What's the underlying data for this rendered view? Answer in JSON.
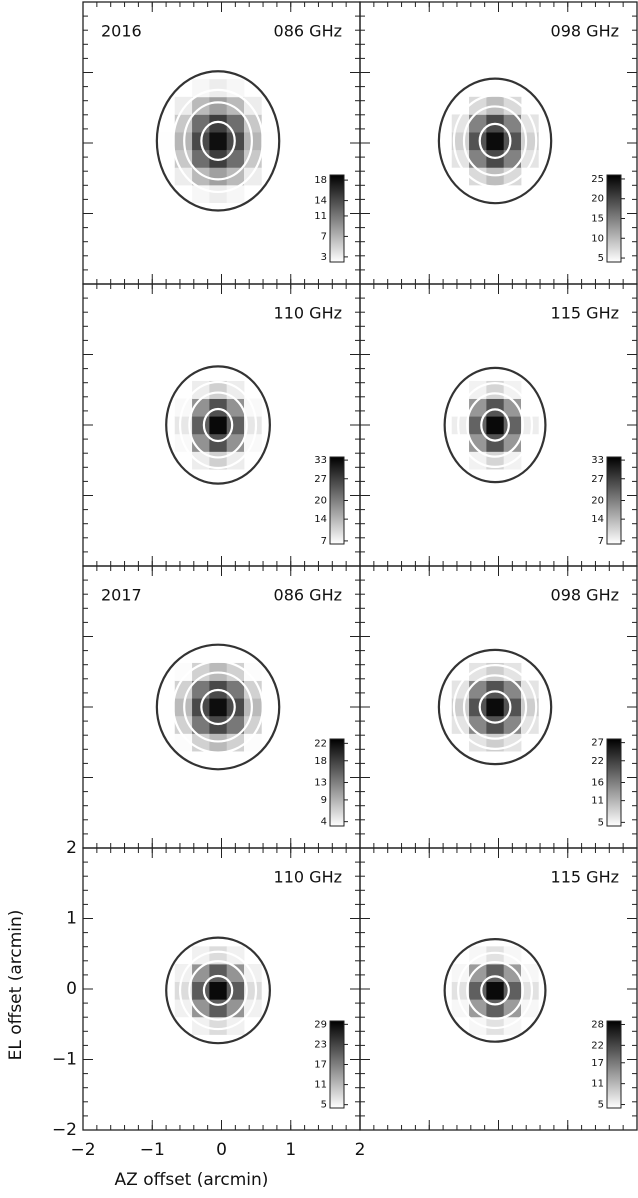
{
  "chart_data": [
    {
      "type": "heatmap",
      "year": "2016",
      "frequency": "086 GHz",
      "xlim": [
        -2,
        2
      ],
      "ylim": [
        -2,
        2
      ],
      "xticks": [
        -2,
        -1,
        0,
        1,
        2
      ],
      "yticks": [
        -2,
        -1,
        0,
        1,
        2
      ],
      "minor_step": 0.2,
      "peak": 18,
      "center": [
        -0.05,
        0.03
      ],
      "fwhm": [
        0.85,
        0.95
      ],
      "pixel": 0.25,
      "contours": [
        0.05,
        0.2,
        0.4,
        0.8
      ],
      "contour_colors": [
        "#333333",
        "#ffffff",
        "#ffffff",
        "#ffffff"
      ],
      "clim": [
        2,
        19
      ],
      "cticks": [
        3,
        7,
        11,
        14,
        18
      ]
    },
    {
      "type": "heatmap",
      "frequency": "098 GHz",
      "xlim": [
        -2,
        2
      ],
      "ylim": [
        -2,
        2
      ],
      "xticks": [
        -2,
        -1,
        0,
        1,
        2
      ],
      "yticks": [
        -2,
        -1,
        0,
        1,
        2
      ],
      "minor_step": 0.2,
      "peak": 25,
      "center": [
        -0.05,
        0.03
      ],
      "fwhm": [
        0.78,
        0.85
      ],
      "pixel": 0.25,
      "contours": [
        0.05,
        0.2,
        0.4,
        0.8
      ],
      "contour_colors": [
        "#333333",
        "#ffffff",
        "#ffffff",
        "#ffffff"
      ],
      "clim": [
        4,
        26
      ],
      "cticks": [
        5,
        10,
        15,
        20,
        25
      ]
    },
    {
      "type": "heatmap",
      "frequency": "110 GHz",
      "xlim": [
        -2,
        2
      ],
      "ylim": [
        -2,
        2
      ],
      "xticks": [
        -2,
        -1,
        0,
        1,
        2
      ],
      "yticks": [
        -2,
        -1,
        0,
        1,
        2
      ],
      "minor_step": 0.2,
      "peak": 33,
      "center": [
        -0.05,
        0.0
      ],
      "fwhm": [
        0.72,
        0.8
      ],
      "pixel": 0.25,
      "contours": [
        0.05,
        0.2,
        0.4,
        0.8
      ],
      "contour_colors": [
        "#333333",
        "#ffffff",
        "#ffffff",
        "#ffffff"
      ],
      "clim": [
        6,
        34
      ],
      "cticks": [
        7,
        14,
        20,
        27,
        33
      ]
    },
    {
      "type": "heatmap",
      "frequency": "115 GHz",
      "xlim": [
        -2,
        2
      ],
      "ylim": [
        -2,
        2
      ],
      "xticks": [
        -2,
        -1,
        0,
        1,
        2
      ],
      "yticks": [
        -2,
        -1,
        0,
        1,
        2
      ],
      "minor_step": 0.2,
      "peak": 33,
      "center": [
        -0.05,
        0.0
      ],
      "fwhm": [
        0.7,
        0.78
      ],
      "pixel": 0.25,
      "contours": [
        0.05,
        0.2,
        0.4,
        0.8
      ],
      "contour_colors": [
        "#333333",
        "#ffffff",
        "#ffffff",
        "#ffffff"
      ],
      "clim": [
        6,
        34
      ],
      "cticks": [
        7,
        14,
        20,
        27,
        33
      ]
    },
    {
      "type": "heatmap",
      "year": "2017",
      "frequency": "086 GHz",
      "xlim": [
        -2,
        2
      ],
      "ylim": [
        -2,
        2
      ],
      "xticks": [
        -2,
        -1,
        0,
        1,
        2
      ],
      "yticks": [
        -2,
        -1,
        0,
        1,
        2
      ],
      "minor_step": 0.2,
      "peak": 22,
      "center": [
        -0.05,
        0.0
      ],
      "fwhm": [
        0.85,
        0.85
      ],
      "pixel": 0.25,
      "contours": [
        0.05,
        0.2,
        0.4,
        0.8
      ],
      "contour_colors": [
        "#333333",
        "#ffffff",
        "#ffffff",
        "#ffffff"
      ],
      "clim": [
        3,
        23
      ],
      "cticks": [
        4,
        9,
        13,
        18,
        22
      ]
    },
    {
      "type": "heatmap",
      "frequency": "098 GHz",
      "xlim": [
        -2,
        2
      ],
      "ylim": [
        -2,
        2
      ],
      "xticks": [
        -2,
        -1,
        0,
        1,
        2
      ],
      "yticks": [
        -2,
        -1,
        0,
        1,
        2
      ],
      "minor_step": 0.2,
      "peak": 27,
      "center": [
        -0.05,
        0.0
      ],
      "fwhm": [
        0.78,
        0.78
      ],
      "pixel": 0.25,
      "contours": [
        0.05,
        0.2,
        0.4,
        0.8
      ],
      "contour_colors": [
        "#333333",
        "#ffffff",
        "#ffffff",
        "#ffffff"
      ],
      "clim": [
        4,
        28
      ],
      "cticks": [
        5,
        11,
        16,
        22,
        27
      ]
    },
    {
      "type": "heatmap",
      "frequency": "110 GHz",
      "xlim": [
        -2,
        2
      ],
      "ylim": [
        -2,
        2
      ],
      "xticks": [
        {
          "value": -2,
          "label": "−2"
        },
        {
          "value": -1,
          "label": "−1"
        },
        0,
        1,
        2
      ],
      "yticks": [
        {
          "value": -2,
          "label": "−2"
        },
        {
          "value": -1,
          "label": "−1"
        },
        0,
        1,
        2
      ],
      "tick_labels": true,
      "xlabel": "AZ offset (arcmin)",
      "ylabel": "EL offset (arcmin)",
      "minor_step": 0.2,
      "peak": 29,
      "center": [
        -0.05,
        -0.02
      ],
      "fwhm": [
        0.72,
        0.72
      ],
      "pixel": 0.25,
      "contours": [
        0.05,
        0.2,
        0.4,
        0.8
      ],
      "contour_colors": [
        "#333333",
        "#ffffff",
        "#ffffff",
        "#ffffff"
      ],
      "clim": [
        4,
        30
      ],
      "cticks": [
        5,
        11,
        17,
        23,
        29
      ]
    },
    {
      "type": "heatmap",
      "frequency": "115 GHz",
      "xlim": [
        -2,
        2
      ],
      "ylim": [
        -2,
        2
      ],
      "xticks": [
        -2,
        -1,
        0,
        1,
        2
      ],
      "yticks": [
        -2,
        -1,
        0,
        1,
        2
      ],
      "minor_step": 0.2,
      "peak": 28,
      "center": [
        -0.05,
        -0.02
      ],
      "fwhm": [
        0.7,
        0.7
      ],
      "pixel": 0.25,
      "contours": [
        0.05,
        0.2,
        0.4,
        0.8
      ],
      "contour_colors": [
        "#333333",
        "#ffffff",
        "#ffffff",
        "#ffffff"
      ],
      "clim": [
        4,
        29
      ],
      "cticks": [
        5,
        11,
        17,
        22,
        28
      ]
    }
  ]
}
